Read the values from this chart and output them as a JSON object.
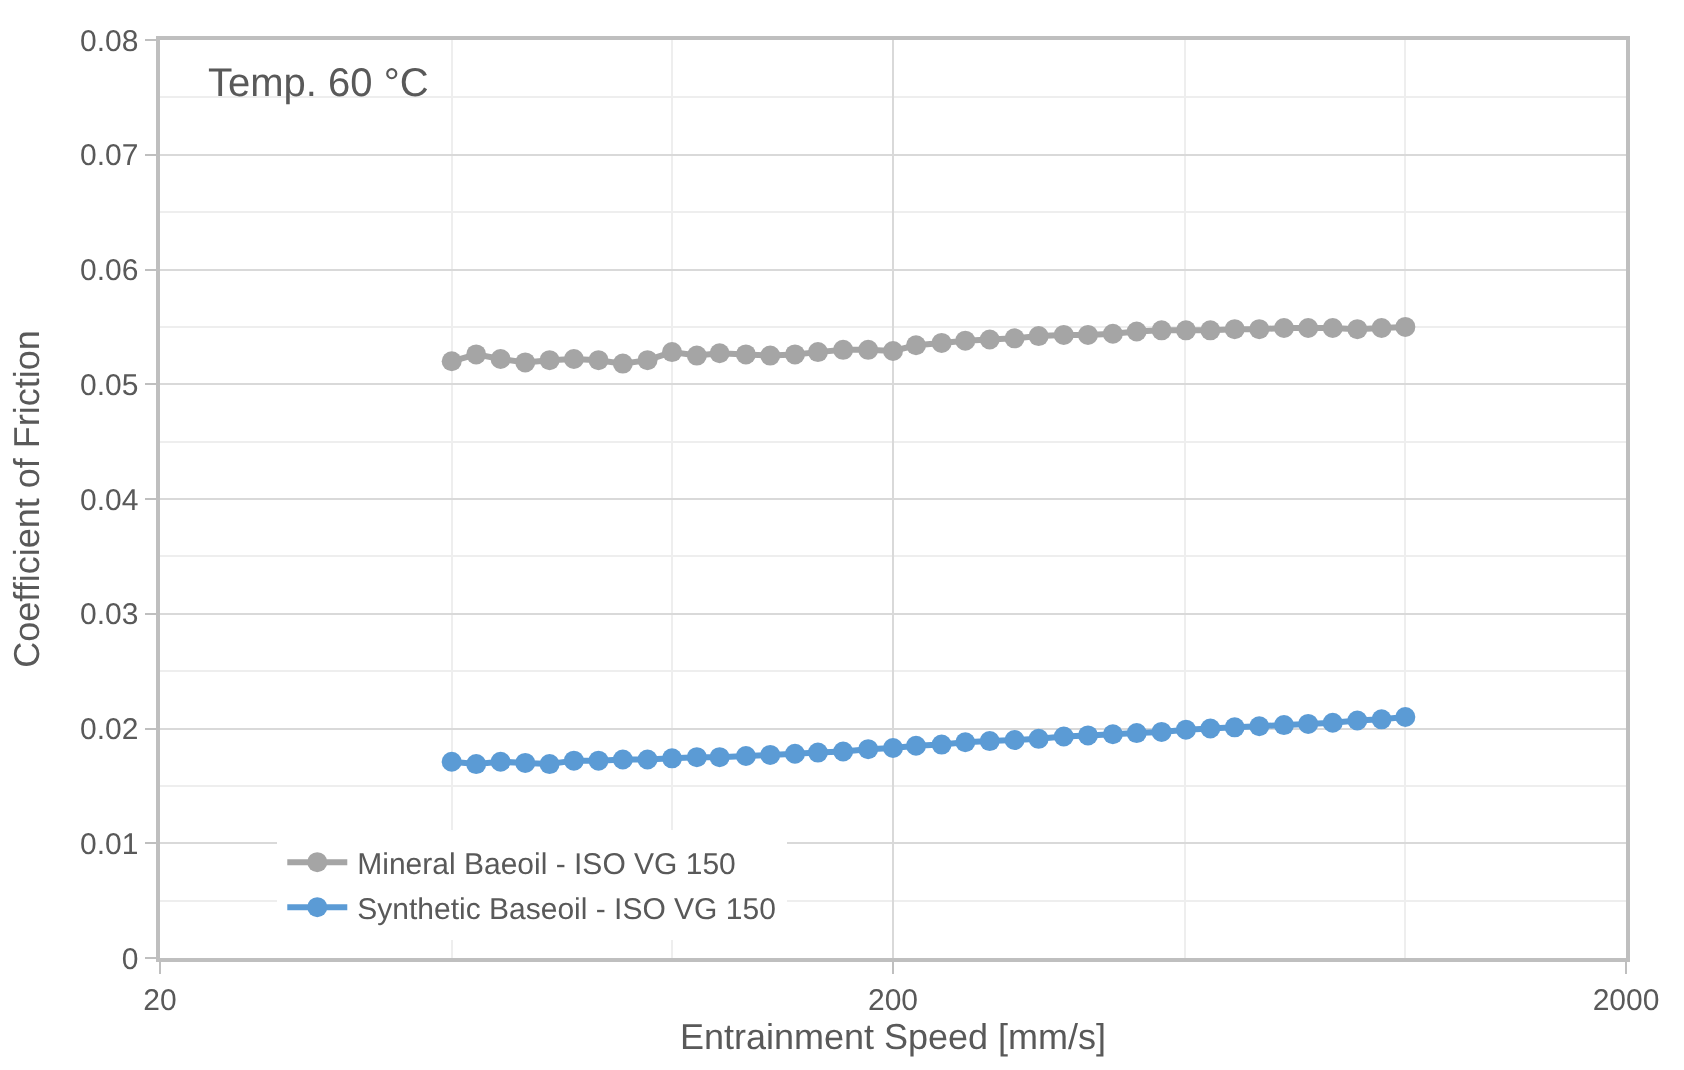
{
  "chart_data": {
    "type": "line",
    "xlabel": "Entrainment Speed [mm/s]",
    "ylabel": "Coefficient of Friction",
    "annotations": [
      "Temp. 60 °C"
    ],
    "x": [
      50,
      54,
      58.3,
      63,
      68,
      73.4,
      79.3,
      85.6,
      92.5,
      99.9,
      108,
      116,
      126,
      136,
      147,
      158,
      171,
      185,
      200,
      215,
      233,
      251,
      271,
      293,
      316,
      342,
      369,
      399,
      430,
      465,
      502,
      542,
      585,
      632,
      683,
      737,
      796,
      860,
      928,
      1000
    ],
    "series": [
      {
        "name": "Mineral Baeoil - ISO VG 150",
        "color": "#a5a5a5",
        "values": [
          0.052,
          0.0526,
          0.0522,
          0.0519,
          0.0521,
          0.0522,
          0.0521,
          0.0518,
          0.0521,
          0.0528,
          0.0525,
          0.0527,
          0.0526,
          0.0525,
          0.0526,
          0.0528,
          0.053,
          0.053,
          0.0529,
          0.0534,
          0.0536,
          0.0538,
          0.0539,
          0.054,
          0.0542,
          0.0543,
          0.0543,
          0.0544,
          0.0546,
          0.0547,
          0.0547,
          0.0547,
          0.0548,
          0.0548,
          0.0549,
          0.0549,
          0.0549,
          0.0548,
          0.0549,
          0.055
        ]
      },
      {
        "name": "Synthetic Baseoil - ISO VG 150",
        "color": "#5b9bd5",
        "values": [
          0.0171,
          0.0169,
          0.0171,
          0.017,
          0.0169,
          0.0172,
          0.0172,
          0.0173,
          0.0173,
          0.0174,
          0.0175,
          0.0175,
          0.0176,
          0.0177,
          0.0178,
          0.0179,
          0.018,
          0.0182,
          0.0183,
          0.0185,
          0.0186,
          0.0188,
          0.0189,
          0.019,
          0.0191,
          0.0193,
          0.0194,
          0.0195,
          0.0196,
          0.0197,
          0.0199,
          0.02,
          0.0201,
          0.0202,
          0.0203,
          0.0204,
          0.0205,
          0.0207,
          0.0208,
          0.021
        ]
      }
    ],
    "log": "x",
    "xlim": [
      20,
      2000
    ],
    "xticks": [
      20,
      200,
      2000
    ],
    "ylim": [
      0,
      0.08
    ],
    "yticks": [
      0,
      0.01,
      0.02,
      0.03,
      0.04,
      0.05,
      0.06,
      0.07,
      0.08
    ],
    "grid": true,
    "legend": "bottom left",
    "marker": "circle",
    "line_style": "solid"
  }
}
